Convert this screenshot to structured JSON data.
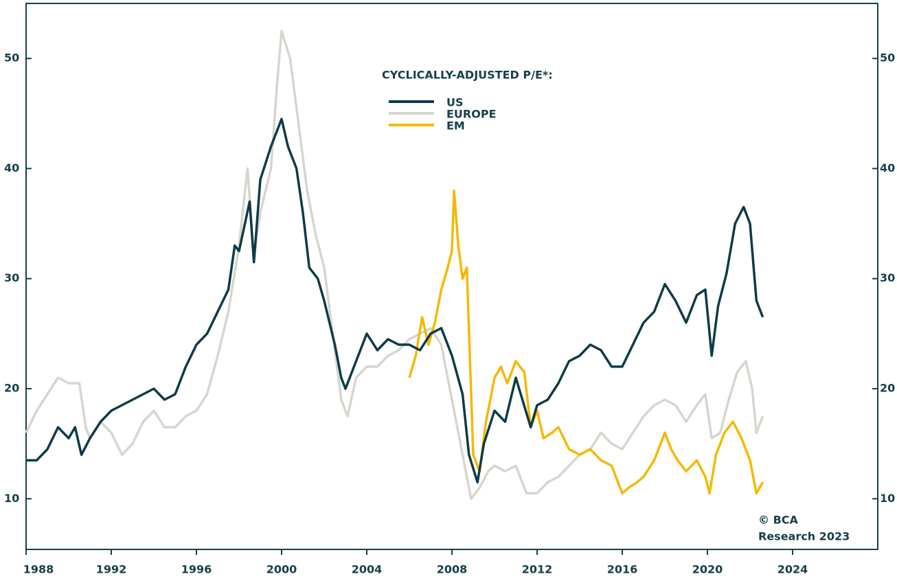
{
  "chart_data": {
    "type": "line",
    "legend_title": "CYCLICALLY-ADJUSTED P/E*:",
    "annotation": [
      "© BCA",
      "Research 2023"
    ],
    "xlim": [
      1988,
      2028
    ],
    "xticks": [
      1988,
      1992,
      1996,
      2000,
      2004,
      2008,
      2012,
      2016,
      2020,
      2024
    ],
    "ylim": [
      5.4,
      55
    ],
    "yticks": [
      10,
      20,
      30,
      40,
      50
    ],
    "y2lim": [
      5.4,
      55
    ],
    "y2ticks": [
      10,
      20,
      30,
      40,
      50
    ],
    "axis_color": "#17404a",
    "series": [
      {
        "name": "US",
        "color": "#0d3b47",
        "x": [
          1988.0,
          1988.5,
          1989.0,
          1989.5,
          1990.0,
          1990.3,
          1990.6,
          1991.0,
          1991.5,
          1992.0,
          1992.5,
          1993.0,
          1993.5,
          1994.0,
          1994.5,
          1995.0,
          1995.5,
          1996.0,
          1996.5,
          1997.0,
          1997.5,
          1997.8,
          1998.0,
          1998.5,
          1998.7,
          1999.0,
          1999.5,
          2000.0,
          2000.3,
          2000.7,
          2001.0,
          2001.3,
          2001.7,
          2002.0,
          2002.5,
          2002.8,
          2003.0,
          2003.5,
          2004.0,
          2004.5,
          2005.0,
          2005.5,
          2006.0,
          2006.5,
          2007.0,
          2007.5,
          2008.0,
          2008.5,
          2008.8,
          2009.2,
          2009.5,
          2010.0,
          2010.5,
          2011.0,
          2011.7,
          2012.0,
          2012.5,
          2013.0,
          2013.5,
          2014.0,
          2014.5,
          2015.0,
          2015.5,
          2016.0,
          2016.5,
          2017.0,
          2017.5,
          2018.0,
          2018.5,
          2019.0,
          2019.5,
          2019.9,
          2020.2,
          2020.5,
          2020.9,
          2021.3,
          2021.7,
          2022.0,
          2022.3,
          2022.6
        ],
        "values": [
          13.5,
          13.5,
          14.5,
          16.5,
          15.5,
          16.5,
          14.0,
          15.5,
          17.0,
          18.0,
          18.5,
          19.0,
          19.5,
          20.0,
          19.0,
          19.5,
          22.0,
          24.0,
          25.0,
          27.0,
          29.0,
          33.0,
          32.5,
          37.0,
          31.5,
          39.0,
          42.0,
          44.5,
          42.0,
          40.0,
          36.0,
          31.0,
          30.0,
          28.0,
          24.0,
          21.0,
          20.0,
          22.5,
          25.0,
          23.5,
          24.5,
          24.0,
          24.0,
          23.5,
          25.0,
          25.5,
          23.0,
          19.5,
          14.0,
          11.5,
          15.0,
          18.0,
          17.0,
          21.0,
          16.5,
          18.5,
          19.0,
          20.5,
          22.5,
          23.0,
          24.0,
          23.5,
          22.0,
          22.0,
          24.0,
          26.0,
          27.0,
          29.5,
          28.0,
          26.0,
          28.5,
          29.0,
          23.0,
          27.5,
          30.5,
          35.0,
          36.5,
          35.0,
          28.0,
          26.5
        ]
      },
      {
        "name": "EUROPE",
        "color": "#d6d6ce",
        "x": [
          1988.0,
          1988.5,
          1989.0,
          1989.5,
          1990.0,
          1990.5,
          1990.8,
          1991.0,
          1991.5,
          1992.0,
          1992.5,
          1993.0,
          1993.5,
          1994.0,
          1994.5,
          1995.0,
          1995.5,
          1996.0,
          1996.5,
          1997.0,
          1997.5,
          1998.0,
          1998.4,
          1998.7,
          1999.0,
          1999.5,
          1999.8,
          2000.0,
          2000.4,
          2000.8,
          2001.2,
          2001.6,
          2002.0,
          2002.4,
          2002.8,
          2003.1,
          2003.5,
          2004.0,
          2004.5,
          2005.0,
          2005.5,
          2006.0,
          2006.5,
          2007.0,
          2007.5,
          2008.0,
          2008.5,
          2008.9,
          2009.3,
          2009.7,
          2010.0,
          2010.5,
          2011.0,
          2011.5,
          2012.0,
          2012.5,
          2013.0,
          2013.5,
          2014.0,
          2014.5,
          2015.0,
          2015.5,
          2016.0,
          2016.5,
          2017.0,
          2017.5,
          2018.0,
          2018.5,
          2019.0,
          2019.5,
          2019.9,
          2020.2,
          2020.6,
          2021.0,
          2021.4,
          2021.8,
          2022.1,
          2022.3,
          2022.6
        ],
        "values": [
          16.0,
          18.0,
          19.5,
          21.0,
          20.5,
          20.5,
          16.5,
          15.5,
          17.0,
          16.0,
          14.0,
          15.0,
          17.0,
          18.0,
          16.5,
          16.5,
          17.5,
          18.0,
          19.5,
          23.0,
          27.0,
          33.0,
          40.0,
          32.0,
          36.0,
          40.0,
          48.0,
          52.5,
          50.0,
          44.0,
          38.0,
          34.0,
          31.0,
          25.0,
          19.0,
          17.5,
          21.0,
          22.0,
          22.0,
          23.0,
          23.5,
          24.5,
          25.0,
          25.5,
          24.0,
          19.0,
          14.0,
          10.0,
          11.0,
          12.5,
          13.0,
          12.5,
          13.0,
          10.5,
          10.5,
          11.5,
          12.0,
          13.0,
          14.0,
          14.5,
          16.0,
          15.0,
          14.5,
          16.0,
          17.5,
          18.5,
          19.0,
          18.5,
          17.0,
          18.5,
          19.5,
          15.5,
          16.0,
          19.0,
          21.5,
          22.5,
          20.0,
          16.0,
          17.5
        ]
      },
      {
        "name": "EM",
        "color": "#f5b800",
        "x": [
          2006.0,
          2006.3,
          2006.6,
          2006.9,
          2007.2,
          2007.5,
          2007.8,
          2008.0,
          2008.1,
          2008.3,
          2008.5,
          2008.7,
          2009.0,
          2009.3,
          2009.6,
          2010.0,
          2010.3,
          2010.6,
          2011.0,
          2011.4,
          2011.7,
          2012.0,
          2012.3,
          2012.7,
          2013.0,
          2013.5,
          2014.0,
          2014.5,
          2015.0,
          2015.5,
          2016.0,
          2016.3,
          2016.7,
          2017.0,
          2017.5,
          2018.0,
          2018.3,
          2018.6,
          2019.0,
          2019.5,
          2019.9,
          2020.1,
          2020.4,
          2020.8,
          2021.2,
          2021.6,
          2022.0,
          2022.3,
          2022.6
        ],
        "values": [
          21.0,
          23.0,
          26.5,
          24.0,
          26.0,
          29.0,
          31.0,
          32.5,
          38.0,
          33.0,
          30.0,
          31.0,
          14.0,
          12.5,
          17.0,
          21.0,
          22.0,
          20.5,
          22.5,
          21.5,
          16.5,
          18.0,
          15.5,
          16.0,
          16.5,
          14.5,
          14.0,
          14.5,
          13.5,
          13.0,
          10.5,
          11.0,
          11.5,
          12.0,
          13.5,
          16.0,
          14.5,
          13.5,
          12.5,
          13.5,
          12.0,
          10.5,
          14.0,
          16.0,
          17.0,
          15.5,
          13.5,
          10.5,
          11.5
        ]
      }
    ]
  }
}
